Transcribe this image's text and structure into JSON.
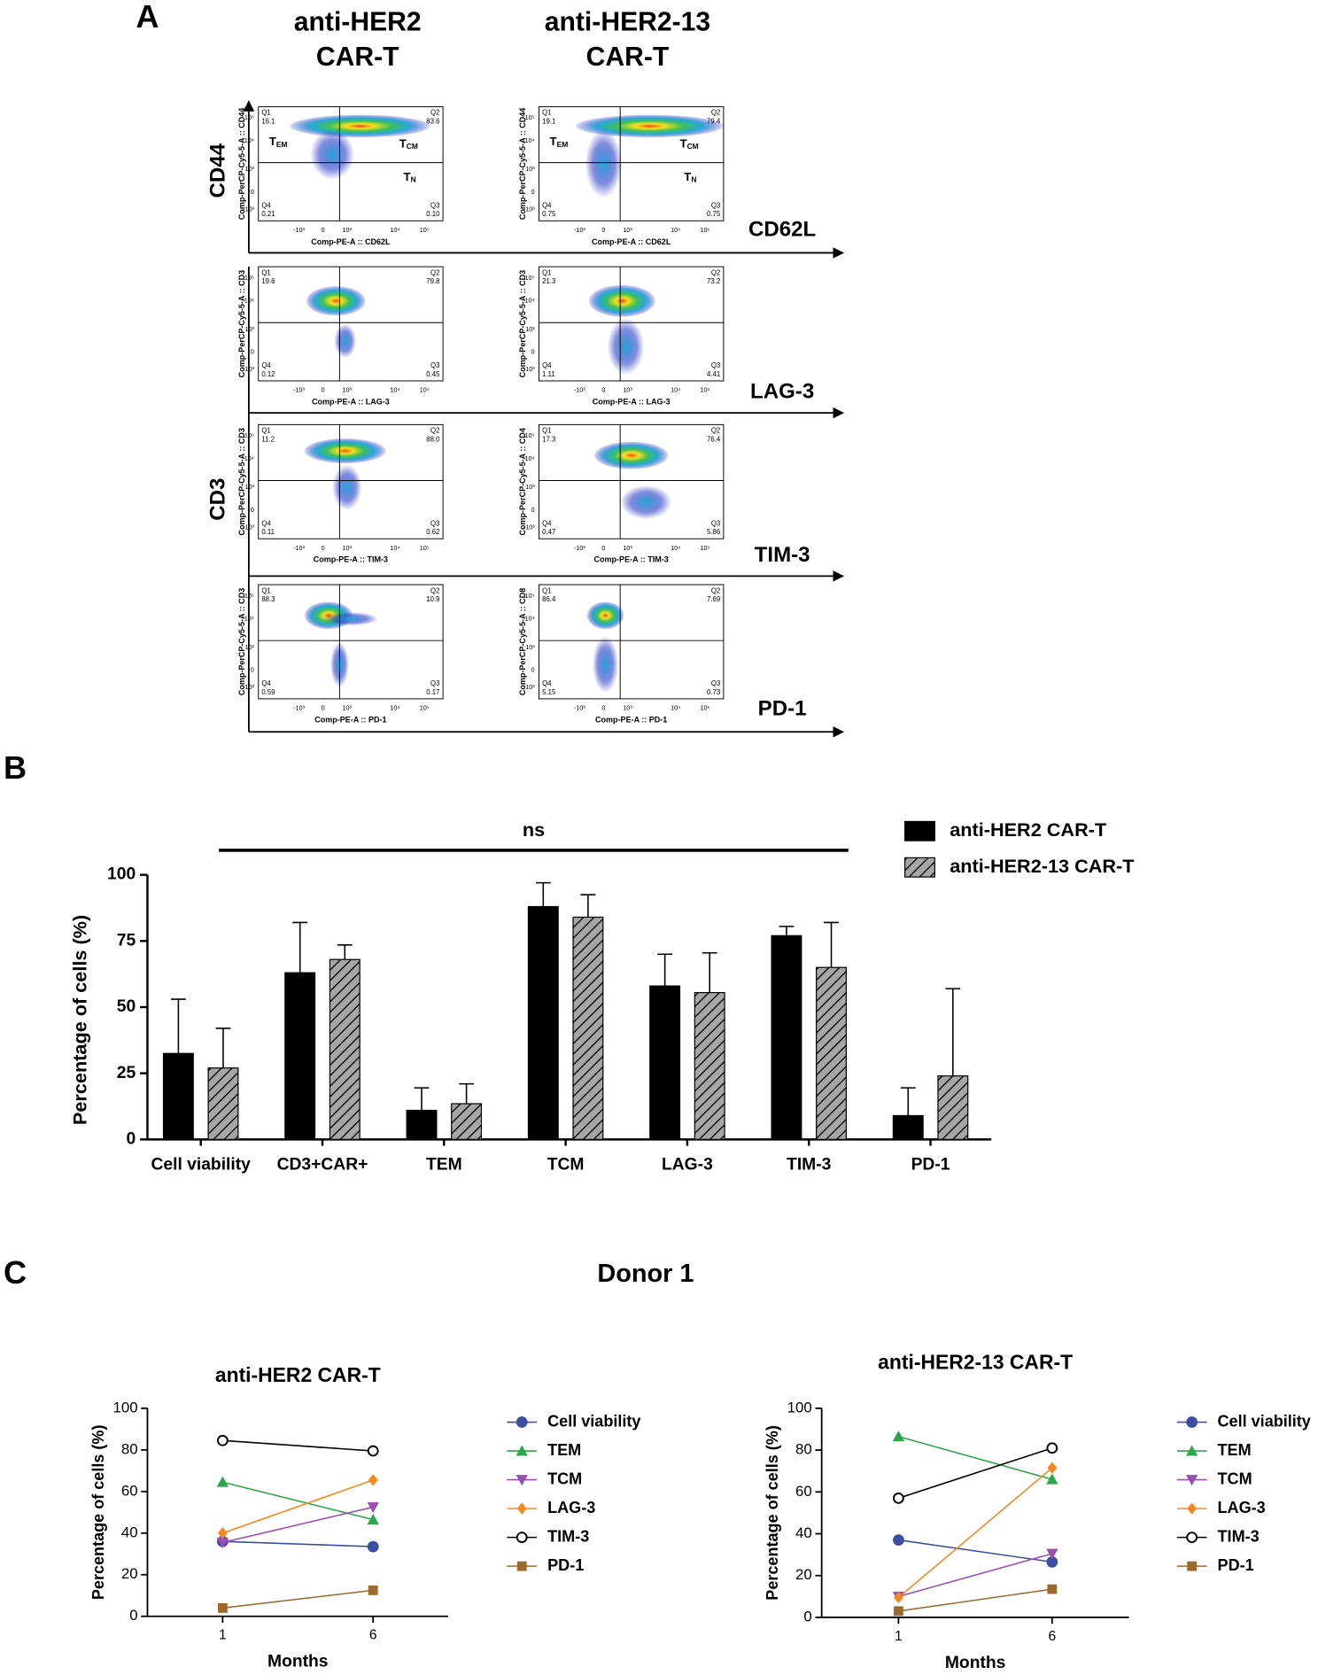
{
  "panel_labels": [
    "A",
    "B",
    "C"
  ],
  "flow": {
    "column_titles": [
      [
        "anti-HER2",
        "CAR-T"
      ],
      [
        "anti-HER2-13",
        "CAR-T"
      ]
    ],
    "group_labels": [
      "CD44",
      "CD3"
    ],
    "x_ticks": [
      "-10³",
      "0",
      "10³",
      "10⁴",
      "10⁵"
    ],
    "y_ticks": [
      "10⁵",
      "10⁴",
      "10³",
      "0",
      "-10³"
    ],
    "subsets": [
      {
        "base": "T",
        "sub": "EM"
      },
      {
        "base": "T",
        "sub": "CM"
      },
      {
        "base": "T",
        "sub": "N"
      }
    ],
    "rows": [
      {
        "marker": "CD62L",
        "plots": [
          {
            "y_label": "Comp-PerCP-Cy5-5-A :: CD44",
            "x_label": "Comp-PE-A :: CD62L",
            "quadrants": [
              {
                "name": "Q1",
                "value": "16.1"
              },
              {
                "name": "Q2",
                "value": "83.6"
              },
              {
                "name": "Q3",
                "value": "0.10"
              },
              {
                "name": "Q4",
                "value": "0.21"
              }
            ]
          },
          {
            "y_label": "Comp-PerCP-Cy5-5-A :: CD44",
            "x_label": "Comp-PE-A :: CD62L",
            "quadrants": [
              {
                "name": "Q1",
                "value": "19.1"
              },
              {
                "name": "Q2",
                "value": "79.4"
              },
              {
                "name": "Q3",
                "value": "0.75"
              },
              {
                "name": "Q4",
                "value": "0.75"
              }
            ]
          }
        ]
      },
      {
        "marker": "LAG-3",
        "plots": [
          {
            "y_label": "Comp-PerCP-Cy5-5-A :: CD3",
            "x_label": "Comp-PE-A :: LAG-3",
            "quadrants": [
              {
                "name": "Q1",
                "value": "19.6"
              },
              {
                "name": "Q2",
                "value": "79.8"
              },
              {
                "name": "Q3",
                "value": "0.45"
              },
              {
                "name": "Q4",
                "value": "0.12"
              }
            ]
          },
          {
            "y_label": "Comp-PerCP-Cy5-5-A :: CD3",
            "x_label": "Comp-PE-A :: LAG-3",
            "quadrants": [
              {
                "name": "Q1",
                "value": "21.3"
              },
              {
                "name": "Q2",
                "value": "73.2"
              },
              {
                "name": "Q3",
                "value": "4.41"
              },
              {
                "name": "Q4",
                "value": "1.11"
              }
            ]
          }
        ]
      },
      {
        "marker": "TIM-3",
        "plots": [
          {
            "y_label": "Comp-PerCP-Cy5-5-A :: CD3",
            "x_label": "Comp-PE-A :: TIM-3",
            "quadrants": [
              {
                "name": "Q1",
                "value": "11.2"
              },
              {
                "name": "Q2",
                "value": "88.0"
              },
              {
                "name": "Q3",
                "value": "0.62"
              },
              {
                "name": "Q4",
                "value": "0.11"
              }
            ]
          },
          {
            "y_label": "Comp-PerCP-Cy5-5-A :: CD4",
            "x_label": "Comp-PE-A :: TIM-3",
            "quadrants": [
              {
                "name": "Q1",
                "value": "17.3"
              },
              {
                "name": "Q2",
                "value": "76.4"
              },
              {
                "name": "Q3",
                "value": "5.86"
              },
              {
                "name": "Q4",
                "value": "0.47"
              }
            ]
          }
        ]
      },
      {
        "marker": "PD-1",
        "plots": [
          {
            "y_label": "Comp-PerCP-Cy5-5-A :: CD3",
            "x_label": "Comp-PE-A :: PD-1",
            "quadrants": [
              {
                "name": "Q1",
                "value": "88.3"
              },
              {
                "name": "Q2",
                "value": "10.9"
              },
              {
                "name": "Q3",
                "value": "0.17"
              },
              {
                "name": "Q4",
                "value": "0.59"
              }
            ]
          },
          {
            "y_label": "Comp-PerCP-Cy5-5-A :: CD8",
            "x_label": "Comp-PE-A :: PD-1",
            "quadrants": [
              {
                "name": "Q1",
                "value": "86.4"
              },
              {
                "name": "Q2",
                "value": "7.69"
              },
              {
                "name": "Q3",
                "value": "0.73"
              },
              {
                "name": "Q4",
                "value": "5.15"
              }
            ]
          }
        ]
      }
    ]
  },
  "figure_title": "Donor 1",
  "chart_data": [
    {
      "type": "bar",
      "y_label": "Percentage of cells (%)",
      "annotation": "ns",
      "categories": [
        "Cell viability",
        "CD3+CAR+",
        "TEM",
        "TCM",
        "LAG-3",
        "TIM-3",
        "PD-1"
      ],
      "series": [
        {
          "name": "anti-HER2 CAR-T",
          "color": "#000000",
          "values": [
            32.5,
            63,
            11,
            88,
            58,
            77,
            9
          ],
          "errors": [
            20.5,
            19,
            8.5,
            9,
            12,
            3.5,
            10.5
          ]
        },
        {
          "name": "anti-HER2-13 CAR-T",
          "color": "#a6a6a6",
          "hatch": true,
          "values": [
            27,
            68,
            13.5,
            84,
            55.5,
            65,
            24
          ],
          "errors": [
            15,
            5.5,
            7.5,
            8.5,
            15,
            17,
            33
          ]
        }
      ],
      "ylim": [
        0,
        100
      ],
      "yticks": [
        0,
        25,
        50,
        75,
        100
      ],
      "legend": "top-right"
    },
    {
      "type": "line",
      "title": "anti-HER2 CAR-T",
      "x_label": "Months",
      "y_label": "Percentage of cells (%)",
      "categories": [
        "1",
        "6"
      ],
      "series": [
        {
          "name": "Cell viability",
          "color": "#3a4ea3",
          "marker": "circle",
          "values": [
            36,
            33.5
          ]
        },
        {
          "name": "TEM",
          "color": "#2ca64b",
          "marker": "triangle-up",
          "values": [
            64.5,
            46.5
          ]
        },
        {
          "name": "TCM",
          "color": "#9a4fb4",
          "marker": "triangle-down",
          "values": [
            35.5,
            52.5
          ]
        },
        {
          "name": "LAG-3",
          "color": "#f5891f",
          "marker": "diamond",
          "values": [
            40,
            65.5
          ]
        },
        {
          "name": "TIM-3",
          "color": "#000000",
          "marker": "open-circle",
          "values": [
            84.5,
            79.5
          ]
        },
        {
          "name": "PD-1",
          "color": "#9b6a2c",
          "marker": "square",
          "values": [
            4,
            12.5
          ]
        }
      ],
      "ylim": [
        0,
        100
      ],
      "yticks": [
        0,
        20,
        40,
        60,
        80,
        100
      ],
      "legend": "right"
    },
    {
      "type": "line",
      "title": "anti-HER2-13 CAR-T",
      "x_label": "Months",
      "y_label": "Percentage of cells (%)",
      "categories": [
        "1",
        "6"
      ],
      "series": [
        {
          "name": "Cell viability",
          "color": "#3a4ea3",
          "marker": "circle",
          "values": [
            37,
            26.5
          ]
        },
        {
          "name": "TEM",
          "color": "#2ca64b",
          "marker": "triangle-up",
          "values": [
            86.5,
            66
          ]
        },
        {
          "name": "TCM",
          "color": "#9a4fb4",
          "marker": "triangle-down",
          "values": [
            10,
            30.5
          ]
        },
        {
          "name": "LAG-3",
          "color": "#f5891f",
          "marker": "diamond",
          "values": [
            9.5,
            71.5
          ]
        },
        {
          "name": "TIM-3",
          "color": "#000000",
          "marker": "open-circle",
          "values": [
            57,
            81
          ]
        },
        {
          "name": "PD-1",
          "color": "#9b6a2c",
          "marker": "square",
          "values": [
            3,
            13.5
          ]
        }
      ],
      "ylim": [
        0,
        100
      ],
      "yticks": [
        0,
        20,
        40,
        60,
        80,
        100
      ],
      "legend": "right"
    }
  ]
}
